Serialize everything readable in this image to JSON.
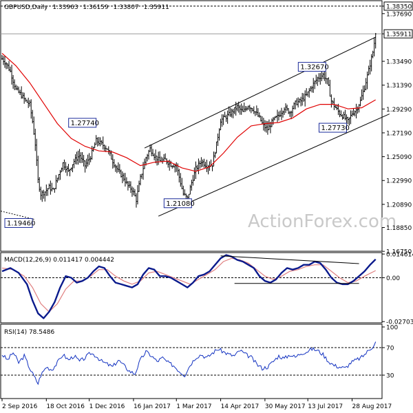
{
  "chart_data": [
    {
      "type": "candlestick",
      "header": {
        "symbol": "GBPUSD,Daily",
        "open": "1.33963",
        "high": "1.36159",
        "low": "1.33807",
        "close": "1.35911"
      },
      "ylim": [
        1.1676,
        1.3883
      ],
      "y_ticks": [
        "1.38350",
        "1.37690",
        "1.35911",
        "1.33490",
        "1.31390",
        "1.29290",
        "1.27190",
        "1.25090",
        "1.22990",
        "1.20890",
        "1.18850",
        "1.16750"
      ],
      "y_tick_values": [
        1.3835,
        1.3769,
        1.35911,
        1.3349,
        1.3139,
        1.2929,
        1.2719,
        1.2509,
        1.2299,
        1.2089,
        1.1885,
        1.1675
      ],
      "current_price_label": "1.35911",
      "resistance_label": "1.38350",
      "x_ticks": [
        "2 Sep 2016",
        "18 Oct 2016",
        "1 Dec 2016",
        "16 Jan 2017",
        "1 Mar 2017",
        "14 Apr 2017",
        "30 May 2017",
        "13 Jul 2017",
        "28 Aug 2017"
      ],
      "x_tick_idx": [
        0,
        32,
        63,
        95,
        126,
        158,
        190,
        221,
        253
      ],
      "annotations": [
        {
          "label": "1.27740",
          "idx": 68,
          "price": 1.2774
        },
        {
          "label": "1.19460",
          "idx": 2,
          "price": 1.1946
        },
        {
          "label": "1.21080",
          "idx": 133,
          "price": 1.2108
        },
        {
          "label": "1.32670",
          "idx": 234,
          "price": 1.3267
        },
        {
          "label": "1.27730",
          "idx": 250,
          "price": 1.2773
        }
      ],
      "channel": {
        "upper": [
          {
            "idx": 103,
            "price": 1.2585
          },
          {
            "idx": 270,
            "price": 1.3562
          }
        ],
        "lower": [
          {
            "idx": 113,
            "price": 1.1985
          },
          {
            "idx": 280,
            "price": 1.2885
          }
        ]
      },
      "close_path": [
        [
          0,
          1.337
        ],
        [
          3,
          1.333
        ],
        [
          6,
          1.326
        ],
        [
          10,
          1.31
        ],
        [
          14,
          1.305
        ],
        [
          17,
          1.3
        ],
        [
          20,
          1.297
        ],
        [
          22,
          1.282
        ],
        [
          24,
          1.262
        ],
        [
          26,
          1.23
        ],
        [
          28,
          1.218
        ],
        [
          31,
          1.22
        ],
        [
          34,
          1.224
        ],
        [
          37,
          1.221
        ],
        [
          40,
          1.232
        ],
        [
          44,
          1.245
        ],
        [
          48,
          1.238
        ],
        [
          52,
          1.247
        ],
        [
          56,
          1.252
        ],
        [
          60,
          1.243
        ],
        [
          64,
          1.251
        ],
        [
          68,
          1.265
        ],
        [
          72,
          1.262
        ],
        [
          76,
          1.258
        ],
        [
          80,
          1.247
        ],
        [
          84,
          1.238
        ],
        [
          88,
          1.232
        ],
        [
          91,
          1.225
        ],
        [
          94,
          1.222
        ],
        [
          97,
          1.213
        ],
        [
          100,
          1.232
        ],
        [
          104,
          1.25
        ],
        [
          107,
          1.258
        ],
        [
          110,
          1.252
        ],
        [
          114,
          1.247
        ],
        [
          118,
          1.248
        ],
        [
          122,
          1.244
        ],
        [
          126,
          1.243
        ],
        [
          129,
          1.228
        ],
        [
          131,
          1.218
        ],
        [
          134,
          1.214
        ],
        [
          137,
          1.228
        ],
        [
          140,
          1.24
        ],
        [
          144,
          1.247
        ],
        [
          148,
          1.243
        ],
        [
          152,
          1.244
        ],
        [
          155,
          1.262
        ],
        [
          158,
          1.283
        ],
        [
          162,
          1.286
        ],
        [
          166,
          1.29
        ],
        [
          170,
          1.295
        ],
        [
          174,
          1.29
        ],
        [
          178,
          1.296
        ],
        [
          182,
          1.292
        ],
        [
          186,
          1.285
        ],
        [
          189,
          1.278
        ],
        [
          192,
          1.275
        ],
        [
          196,
          1.283
        ],
        [
          200,
          1.287
        ],
        [
          204,
          1.294
        ],
        [
          208,
          1.29
        ],
        [
          212,
          1.298
        ],
        [
          216,
          1.3
        ],
        [
          220,
          1.305
        ],
        [
          224,
          1.313
        ],
        [
          228,
          1.32
        ],
        [
          232,
          1.323
        ],
        [
          235,
          1.318
        ],
        [
          238,
          1.3
        ],
        [
          241,
          1.294
        ],
        [
          244,
          1.289
        ],
        [
          247,
          1.286
        ],
        [
          250,
          1.282
        ],
        [
          253,
          1.289
        ],
        [
          256,
          1.292
        ],
        [
          259,
          1.3
        ],
        [
          262,
          1.312
        ],
        [
          265,
          1.327
        ],
        [
          268,
          1.343
        ],
        [
          270,
          1.359
        ]
      ],
      "ma_path": [
        [
          0,
          1.342
        ],
        [
          10,
          1.331
        ],
        [
          20,
          1.316
        ],
        [
          30,
          1.298
        ],
        [
          40,
          1.28
        ],
        [
          50,
          1.267
        ],
        [
          60,
          1.26
        ],
        [
          70,
          1.256
        ],
        [
          80,
          1.255
        ],
        [
          90,
          1.25
        ],
        [
          100,
          1.243
        ],
        [
          110,
          1.246
        ],
        [
          120,
          1.247
        ],
        [
          130,
          1.241
        ],
        [
          140,
          1.238
        ],
        [
          150,
          1.242
        ],
        [
          160,
          1.254
        ],
        [
          170,
          1.268
        ],
        [
          180,
          1.278
        ],
        [
          190,
          1.28
        ],
        [
          200,
          1.281
        ],
        [
          210,
          1.285
        ],
        [
          220,
          1.293
        ],
        [
          230,
          1.297
        ],
        [
          240,
          1.297
        ],
        [
          250,
          1.293
        ],
        [
          260,
          1.294
        ],
        [
          270,
          1.301
        ]
      ],
      "series": [
        {
          "name": "Price",
          "color": "#000000"
        },
        {
          "name": "MA",
          "color": "#e00000"
        }
      ]
    },
    {
      "type": "line",
      "title": "MACD(12,26,9) 0.011417 0.004442",
      "ylim": [
        -0.0278,
        0.0155
      ],
      "y_ticks": [
        "0.014614",
        "0.00",
        "-0.027031"
      ],
      "y_tick_values": [
        0.014614,
        0.0,
        -0.027031
      ],
      "macd_path": [
        [
          0,
          0.004
        ],
        [
          6,
          0.006
        ],
        [
          12,
          0.003
        ],
        [
          18,
          -0.004
        ],
        [
          22,
          -0.014
        ],
        [
          26,
          -0.022
        ],
        [
          30,
          -0.025
        ],
        [
          34,
          -0.021
        ],
        [
          38,
          -0.015
        ],
        [
          42,
          -0.006
        ],
        [
          46,
          0.001
        ],
        [
          50,
          0.0
        ],
        [
          54,
          -0.003
        ],
        [
          58,
          -0.002
        ],
        [
          62,
          0.0
        ],
        [
          66,
          0.004
        ],
        [
          70,
          0.007
        ],
        [
          74,
          0.006
        ],
        [
          78,
          0.001
        ],
        [
          82,
          -0.003
        ],
        [
          86,
          -0.004
        ],
        [
          90,
          -0.005
        ],
        [
          94,
          -0.006
        ],
        [
          98,
          -0.004
        ],
        [
          102,
          0.002
        ],
        [
          106,
          0.006
        ],
        [
          110,
          0.005
        ],
        [
          114,
          0.001
        ],
        [
          118,
          0.001
        ],
        [
          122,
          0.0
        ],
        [
          126,
          -0.002
        ],
        [
          130,
          -0.004
        ],
        [
          134,
          -0.006
        ],
        [
          138,
          -0.003
        ],
        [
          142,
          0.001
        ],
        [
          146,
          0.002
        ],
        [
          150,
          0.004
        ],
        [
          154,
          0.008
        ],
        [
          158,
          0.012
        ],
        [
          162,
          0.014
        ],
        [
          166,
          0.013
        ],
        [
          170,
          0.011
        ],
        [
          174,
          0.01
        ],
        [
          178,
          0.008
        ],
        [
          182,
          0.006
        ],
        [
          186,
          0.001
        ],
        [
          190,
          -0.002
        ],
        [
          194,
          -0.003
        ],
        [
          198,
          -0.001
        ],
        [
          202,
          0.003
        ],
        [
          206,
          0.006
        ],
        [
          210,
          0.005
        ],
        [
          214,
          0.006
        ],
        [
          218,
          0.008
        ],
        [
          222,
          0.008
        ],
        [
          226,
          0.01
        ],
        [
          230,
          0.009
        ],
        [
          234,
          0.005
        ],
        [
          238,
          0.0
        ],
        [
          242,
          -0.003
        ],
        [
          246,
          -0.004
        ],
        [
          250,
          -0.004
        ],
        [
          254,
          -0.002
        ],
        [
          258,
          0.001
        ],
        [
          262,
          0.004
        ],
        [
          266,
          0.008
        ],
        [
          270,
          0.0114
        ]
      ],
      "signal_path": [
        [
          0,
          0.006
        ],
        [
          8,
          0.005
        ],
        [
          16,
          0.001
        ],
        [
          22,
          -0.006
        ],
        [
          28,
          -0.016
        ],
        [
          34,
          -0.021
        ],
        [
          40,
          -0.016
        ],
        [
          46,
          -0.007
        ],
        [
          52,
          -0.002
        ],
        [
          58,
          -0.002
        ],
        [
          64,
          0.001
        ],
        [
          70,
          0.005
        ],
        [
          76,
          0.005
        ],
        [
          82,
          0.001
        ],
        [
          88,
          -0.002
        ],
        [
          94,
          -0.004
        ],
        [
          100,
          -0.002
        ],
        [
          106,
          0.003
        ],
        [
          112,
          0.004
        ],
        [
          118,
          0.002
        ],
        [
          124,
          0.0
        ],
        [
          130,
          -0.002
        ],
        [
          136,
          -0.004
        ],
        [
          142,
          -0.001
        ],
        [
          148,
          0.002
        ],
        [
          154,
          0.005
        ],
        [
          160,
          0.01
        ],
        [
          166,
          0.012
        ],
        [
          172,
          0.011
        ],
        [
          178,
          0.009
        ],
        [
          184,
          0.005
        ],
        [
          190,
          0.001
        ],
        [
          196,
          -0.001
        ],
        [
          202,
          0.001
        ],
        [
          208,
          0.004
        ],
        [
          214,
          0.005
        ],
        [
          220,
          0.007
        ],
        [
          226,
          0.008
        ],
        [
          232,
          0.008
        ],
        [
          238,
          0.004
        ],
        [
          244,
          0.0
        ],
        [
          250,
          -0.003
        ],
        [
          256,
          -0.002
        ],
        [
          262,
          0.001
        ],
        [
          270,
          0.0044
        ]
      ],
      "trendlines": [
        {
          "from": {
            "idx": 158,
            "v": 0.0135
          },
          "to": {
            "idx": 258,
            "v": 0.0087
          }
        },
        {
          "from": {
            "idx": 168,
            "v": -0.0035
          },
          "to": {
            "idx": 258,
            "v": -0.0035
          }
        }
      ],
      "series": [
        {
          "name": "MACD",
          "color": "#0a1a8c"
        },
        {
          "name": "Signal",
          "color": "#e08080"
        }
      ]
    },
    {
      "type": "line",
      "title": "RSI(14) 78.5486",
      "ylim": [
        0,
        100
      ],
      "y_ticks": [
        "100",
        "70",
        "30",
        "0"
      ],
      "y_tick_values": [
        100,
        70,
        30,
        0
      ],
      "rsi_path": [
        [
          0,
          60
        ],
        [
          4,
          52
        ],
        [
          8,
          63
        ],
        [
          12,
          48
        ],
        [
          16,
          58
        ],
        [
          20,
          40
        ],
        [
          24,
          25
        ],
        [
          26,
          18
        ],
        [
          28,
          30
        ],
        [
          32,
          42
        ],
        [
          36,
          38
        ],
        [
          40,
          48
        ],
        [
          44,
          60
        ],
        [
          48,
          52
        ],
        [
          52,
          58
        ],
        [
          56,
          50
        ],
        [
          60,
          55
        ],
        [
          64,
          62
        ],
        [
          68,
          58
        ],
        [
          72,
          50
        ],
        [
          76,
          46
        ],
        [
          80,
          42
        ],
        [
          84,
          52
        ],
        [
          88,
          44
        ],
        [
          92,
          36
        ],
        [
          96,
          32
        ],
        [
          100,
          52
        ],
        [
          104,
          64
        ],
        [
          108,
          58
        ],
        [
          112,
          50
        ],
        [
          116,
          55
        ],
        [
          120,
          48
        ],
        [
          124,
          44
        ],
        [
          128,
          36
        ],
        [
          132,
          30
        ],
        [
          136,
          45
        ],
        [
          140,
          56
        ],
        [
          144,
          60
        ],
        [
          148,
          55
        ],
        [
          152,
          62
        ],
        [
          156,
          68
        ],
        [
          160,
          64
        ],
        [
          164,
          60
        ],
        [
          168,
          58
        ],
        [
          172,
          66
        ],
        [
          176,
          60
        ],
        [
          180,
          56
        ],
        [
          184,
          46
        ],
        [
          188,
          40
        ],
        [
          192,
          42
        ],
        [
          196,
          50
        ],
        [
          200,
          58
        ],
        [
          204,
          54
        ],
        [
          208,
          60
        ],
        [
          212,
          56
        ],
        [
          216,
          62
        ],
        [
          220,
          64
        ],
        [
          224,
          68
        ],
        [
          228,
          66
        ],
        [
          232,
          60
        ],
        [
          236,
          50
        ],
        [
          240,
          44
        ],
        [
          244,
          42
        ],
        [
          248,
          40
        ],
        [
          252,
          48
        ],
        [
          256,
          52
        ],
        [
          260,
          56
        ],
        [
          264,
          64
        ],
        [
          268,
          72
        ],
        [
          270,
          78.5
        ]
      ],
      "series": [
        {
          "name": "RSI",
          "color": "#1030c0"
        }
      ]
    }
  ],
  "watermark": "ActionForex.com"
}
